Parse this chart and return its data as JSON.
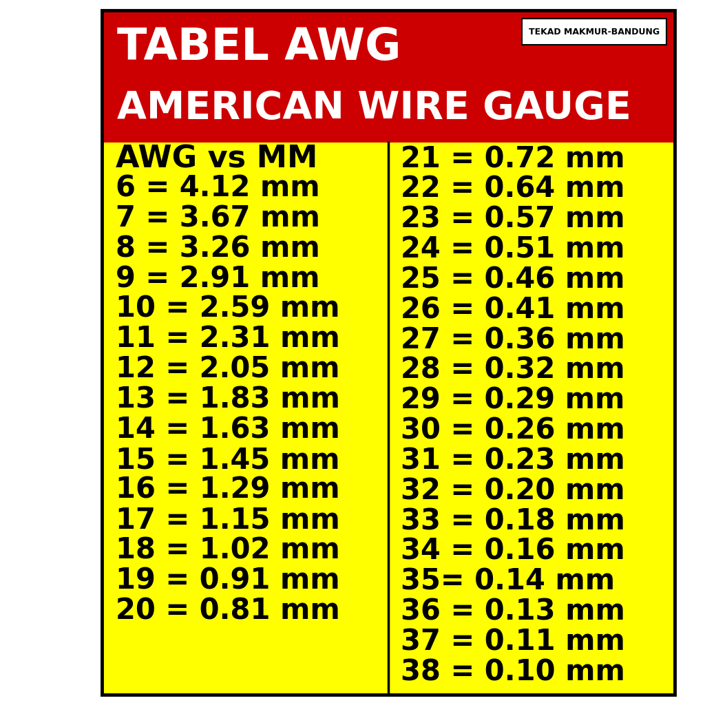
{
  "title_line1": "TABEL AWG",
  "title_line2": "AMERICAN WIRE GAUGE",
  "watermark": "TEKAD MAKMUR-BANDUNG",
  "header_bg": "#CC0000",
  "table_bg": "#FFFF00",
  "text_color": "#000000",
  "title_color": "#FFFFFF",
  "border_color": "#000000",
  "col1_header": "AWG vs MM",
  "col1_data": [
    "6 = 4.12 mm",
    "7 = 3.67 mm",
    "8 = 3.26 mm",
    "9 = 2.91 mm",
    "10 = 2.59 mm",
    "11 = 2.31 mm",
    "12 = 2.05 mm",
    "13 = 1.83 mm",
    "14 = 1.63 mm",
    "15 = 1.45 mm",
    "16 = 1.29 mm",
    "17 = 1.15 mm",
    "18 = 1.02 mm",
    "19 = 0.91 mm",
    "20 = 0.81 mm"
  ],
  "col2_data": [
    "21 = 0.72 mm",
    "22 = 0.64 mm",
    "23 = 0.57 mm",
    "24 = 0.51 mm",
    "25 = 0.46 mm",
    "26 = 0.41 mm",
    "27 = 0.36 mm",
    "28 = 0.32 mm",
    "29 = 0.29 mm",
    "30 = 0.26 mm",
    "31 = 0.23 mm",
    "32 = 0.20 mm",
    "33 = 0.18 mm",
    "34 = 0.16 mm",
    "35= 0.14 mm",
    "36 = 0.13 mm",
    "37 = 0.11 mm",
    "38 = 0.10 mm"
  ],
  "fig_width": 10.24,
  "fig_height": 10.24,
  "dpi": 100
}
